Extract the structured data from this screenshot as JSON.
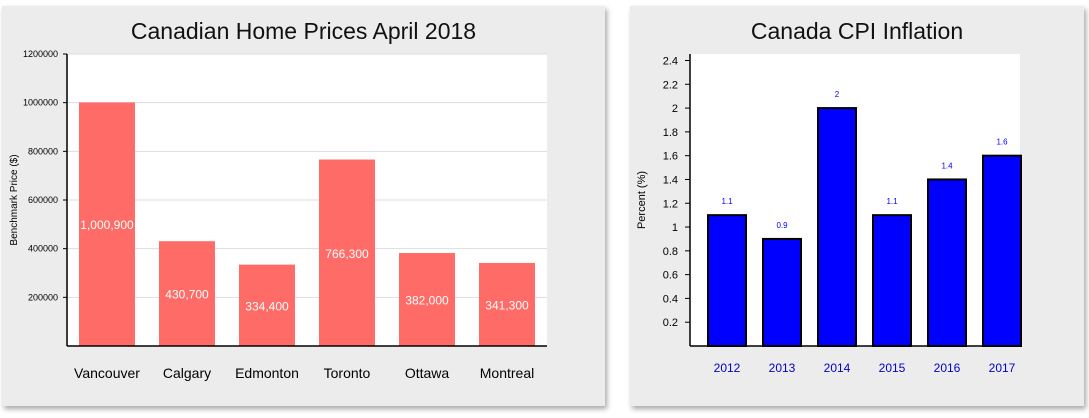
{
  "chart_data": [
    {
      "type": "bar",
      "title": "Canadian Home Prices April 2018",
      "ylabel": "Benchmark Price ($)",
      "xlabel": "",
      "categories": [
        "Vancouver",
        "Calgary",
        "Edmonton",
        "Toronto",
        "Ottawa",
        "Montreal"
      ],
      "values": [
        1000900,
        430700,
        334400,
        766300,
        382000,
        341300
      ],
      "data_labels": [
        "1,000,900",
        "430,700",
        "334,400",
        "766,300",
        "382,000",
        "341,300"
      ],
      "ylim": [
        0,
        1200000
      ],
      "yticks": [
        200000,
        400000,
        600000,
        800000,
        1000000,
        1200000
      ],
      "ytick_labels": [
        "200000",
        "400000",
        "600000",
        "800000",
        "1000000",
        "1200000"
      ],
      "grid": true,
      "colors": {
        "bar": "#ff6b66",
        "plot_bg": "#ffffff",
        "grid": "#dddddd",
        "label": "#ffffff"
      }
    },
    {
      "type": "bar",
      "title": "Canada CPI Inflation",
      "ylabel": "Percent (%)",
      "xlabel": "",
      "categories": [
        "2012",
        "2013",
        "2014",
        "2015",
        "2016",
        "2017"
      ],
      "values": [
        1.1,
        0.9,
        2,
        1.1,
        1.4,
        1.6
      ],
      "data_labels": [
        "1.1",
        "0.9",
        "2",
        "1.1",
        "1.4",
        "1.6"
      ],
      "ylim": [
        0,
        2.4
      ],
      "yticks": [
        0.2,
        0.4,
        0.6,
        0.8,
        1,
        1.2,
        1.4,
        1.6,
        1.8,
        2,
        2.2,
        2.4
      ],
      "ytick_labels": [
        "0.2",
        "0.4",
        "0.6",
        "0.8",
        "1",
        "1.2",
        "1.4",
        "1.6",
        "1.8",
        "2",
        "2.2",
        "2.4"
      ],
      "grid": false,
      "colors": {
        "bar": "#0000ff",
        "bar_stroke": "#000000",
        "plot_bg": "#ffffff",
        "label": "#0000ff",
        "category": "#0000cc"
      }
    }
  ]
}
